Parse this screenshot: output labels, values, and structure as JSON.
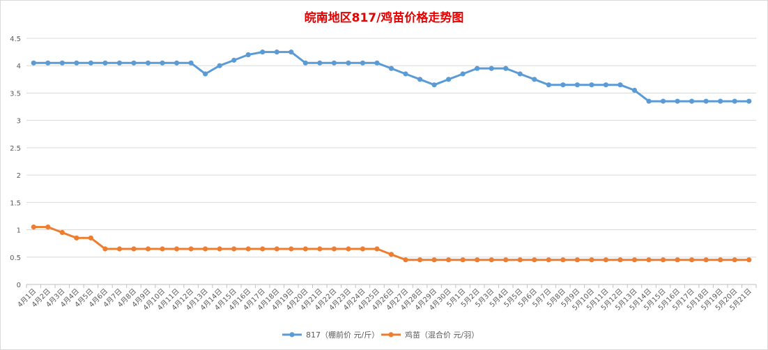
{
  "chart_data": {
    "type": "line",
    "title": "皖南地区817/鸡苗价格走势图",
    "xlabel": "",
    "ylabel": "",
    "ylim": [
      0,
      4.5
    ],
    "yticks": [
      "0",
      "0.5",
      "1",
      "1.5",
      "2",
      "2.5",
      "3",
      "3.5",
      "4",
      "4.5"
    ],
    "grid": true,
    "legend_position": "bottom",
    "categories": [
      "4月1日",
      "4月2日",
      "4月3日",
      "4月4日",
      "4月5日",
      "4月6日",
      "4月7日",
      "4月8日",
      "4月9日",
      "4月10日",
      "4月11日",
      "4月12日",
      "4月13日",
      "4月14日",
      "4月15日",
      "4月16日",
      "4月17日",
      "4月18日",
      "4月19日",
      "4月20日",
      "4月21日",
      "4月22日",
      "4月23日",
      "4月24日",
      "4月25日",
      "4月26日",
      "4月27日",
      "4月28日",
      "4月29日",
      "4月30日",
      "5月1日",
      "5月2日",
      "5月3日",
      "5月4日",
      "5月5日",
      "5月6日",
      "5月7日",
      "5月8日",
      "5月9日",
      "5月10日",
      "5月11日",
      "5月12日",
      "5月13日",
      "5月14日",
      "5月15日",
      "5月16日",
      "5月17日",
      "5月18日",
      "5月19日",
      "5月20日",
      "5月21日"
    ],
    "series": [
      {
        "name": "817（棚前价 元/斤）",
        "color": "#5b9bd5",
        "values": [
          4.05,
          4.05,
          4.05,
          4.05,
          4.05,
          4.05,
          4.05,
          4.05,
          4.05,
          4.05,
          4.05,
          4.05,
          3.85,
          4.0,
          4.1,
          4.2,
          4.25,
          4.25,
          4.25,
          4.05,
          4.05,
          4.05,
          4.05,
          4.05,
          4.05,
          3.95,
          3.85,
          3.75,
          3.65,
          3.75,
          3.85,
          3.95,
          3.95,
          3.95,
          3.85,
          3.75,
          3.65,
          3.65,
          3.65,
          3.65,
          3.65,
          3.65,
          3.55,
          3.35,
          3.35,
          3.35,
          3.35,
          3.35,
          3.35,
          3.35,
          3.35
        ]
      },
      {
        "name": "鸡苗（混合价 元/羽）",
        "color": "#ed7d31",
        "values": [
          1.05,
          1.05,
          0.95,
          0.85,
          0.85,
          0.65,
          0.65,
          0.65,
          0.65,
          0.65,
          0.65,
          0.65,
          0.65,
          0.65,
          0.65,
          0.65,
          0.65,
          0.65,
          0.65,
          0.65,
          0.65,
          0.65,
          0.65,
          0.65,
          0.65,
          0.55,
          0.45,
          0.45,
          0.45,
          0.45,
          0.45,
          0.45,
          0.45,
          0.45,
          0.45,
          0.45,
          0.45,
          0.45,
          0.45,
          0.45,
          0.45,
          0.45,
          0.45,
          0.45,
          0.45,
          0.45,
          0.45,
          0.45,
          0.45,
          0.45,
          0.45
        ]
      }
    ]
  }
}
